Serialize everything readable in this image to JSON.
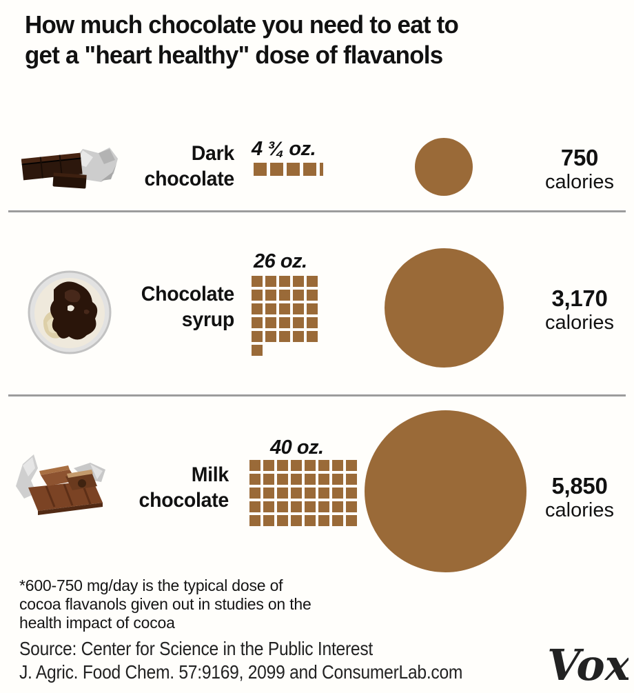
{
  "title": {
    "line1": "How much chocolate you need to eat to",
    "line2": "get a \"heart healthy\" dose of flavanols"
  },
  "colors": {
    "chocolate_brown": "#9a6a38",
    "divider_gray": "#9c9c9c",
    "text_black": "#111111"
  },
  "rows": [
    {
      "name": "dark-chocolate",
      "label_lines": [
        "Dark",
        "chocolate"
      ],
      "amount_label": "4 ¾ oz.",
      "squares": {
        "full": 4,
        "partial": 0.25,
        "columns": 5
      },
      "calories_value": "750",
      "calories_unit": "calories",
      "image": "dark-chocolate-bar-photo"
    },
    {
      "name": "chocolate-syrup",
      "label_lines": [
        "Chocolate",
        "syrup"
      ],
      "amount_label": "26 oz.",
      "squares": {
        "full": 26,
        "partial": 0,
        "columns": 5
      },
      "calories_value": "3,170",
      "calories_unit": "calories",
      "image": "chocolate-syrup-bowl-photo"
    },
    {
      "name": "milk-chocolate",
      "label_lines": [
        "Milk",
        "chocolate"
      ],
      "amount_label": "40 oz.",
      "squares": {
        "full": 40,
        "partial": 0,
        "columns": 8
      },
      "calories_value": "5,850",
      "calories_unit": "calories",
      "image": "milk-chocolate-bar-photo"
    }
  ],
  "footnote": {
    "lines": [
      "*600-750 mg/day is the typical dose of",
      "cocoa flavanols given out in studies on the",
      "health impact of cocoa"
    ]
  },
  "source": {
    "lines": [
      "Source:  Center for Science in the Public Interest",
      "J. Agric. Food Chem. 57:9169, 2099 and ConsumerLab.com"
    ]
  },
  "logo": {
    "text": "Vox"
  },
  "chart_data": {
    "type": "pictograph",
    "title": "How much chocolate you need to eat to get a \"heart healthy\" dose of flavanols",
    "categories": [
      "Dark chocolate",
      "Chocolate syrup",
      "Milk chocolate"
    ],
    "series": [
      {
        "name": "Amount (oz)",
        "values": [
          4.75,
          26,
          40
        ]
      },
      {
        "name": "Calories",
        "values": [
          750,
          3170,
          5850
        ]
      }
    ],
    "amount_labels": [
      "4 ¾ oz.",
      "26 oz.",
      "40 oz."
    ],
    "calories_labels": [
      "750 calories",
      "3,170 calories",
      "5,850 calories"
    ],
    "square_unit": "1 square = 1 oz",
    "circle_encoding": "circle area proportional to calories",
    "legend_position": "none",
    "grid": false,
    "footnote": "*600-750 mg/day is the typical dose of cocoa flavanols given out in studies on the health impact of cocoa",
    "source": "Center for Science in the Public Interest; J. Agric. Food Chem. 57:9169, 2099 and ConsumerLab.com"
  }
}
